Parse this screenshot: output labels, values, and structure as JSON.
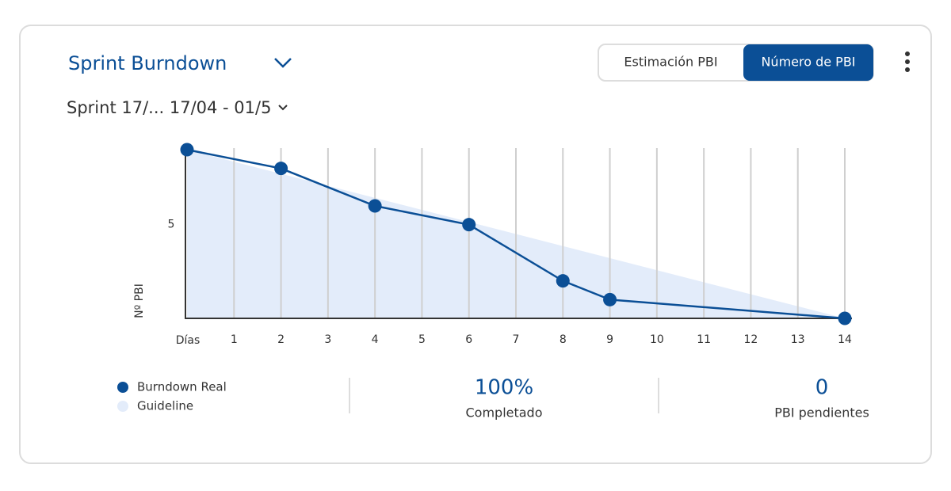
{
  "header": {
    "title": "Sprint Burndown",
    "sprint": "Sprint 17/... 17/04 - 01/5"
  },
  "toggle": {
    "options": [
      "Estimación PBI",
      "Número de PBI"
    ],
    "active": 1
  },
  "chart_data": {
    "type": "line",
    "xlabel": "Días",
    "ylabel": "Nº PBI",
    "xlim": [
      0,
      14
    ],
    "xticks": [
      1,
      2,
      3,
      4,
      5,
      6,
      7,
      8,
      9,
      10,
      11,
      12,
      13,
      14
    ],
    "ylim": [
      0,
      9
    ],
    "yticks": [
      5
    ],
    "grid": true,
    "series": [
      {
        "name": "Burndown Real",
        "color": "#0b4f96",
        "x": [
          0,
          2,
          4,
          6,
          8,
          9,
          14
        ],
        "values": [
          9,
          8,
          6,
          5,
          2,
          1,
          0
        ]
      },
      {
        "name": "Guideline",
        "color": "#e3ecfa",
        "style": "area",
        "x": [
          0,
          14
        ],
        "values": [
          9,
          0
        ]
      }
    ]
  },
  "stats": [
    {
      "value": "100%",
      "label": "Completado"
    },
    {
      "value": "0",
      "label": "PBI pendientes"
    }
  ]
}
